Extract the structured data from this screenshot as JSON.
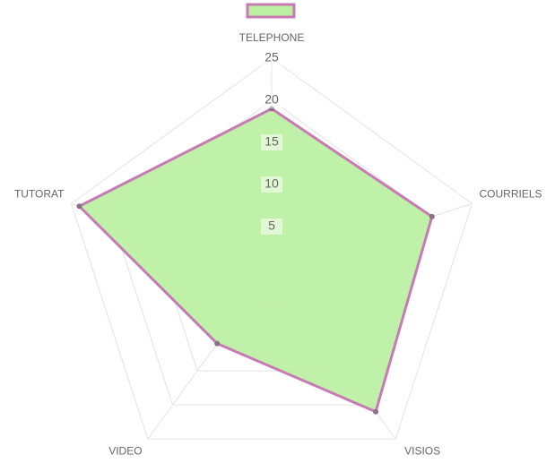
{
  "chart_data": {
    "type": "radar",
    "categories": [
      "TELEPHONE",
      "COURRIELS",
      "VISIOS",
      "VIDEO",
      "TUTORAT"
    ],
    "series": [
      {
        "color": "#c77bb5",
        "fill": "#bdf0a3",
        "values": [
          19,
          20,
          21,
          11,
          24
        ]
      }
    ],
    "rlim": [
      0,
      25
    ],
    "rticks": [
      5,
      10,
      15,
      20,
      25
    ],
    "grid": true,
    "legend": "top"
  }
}
